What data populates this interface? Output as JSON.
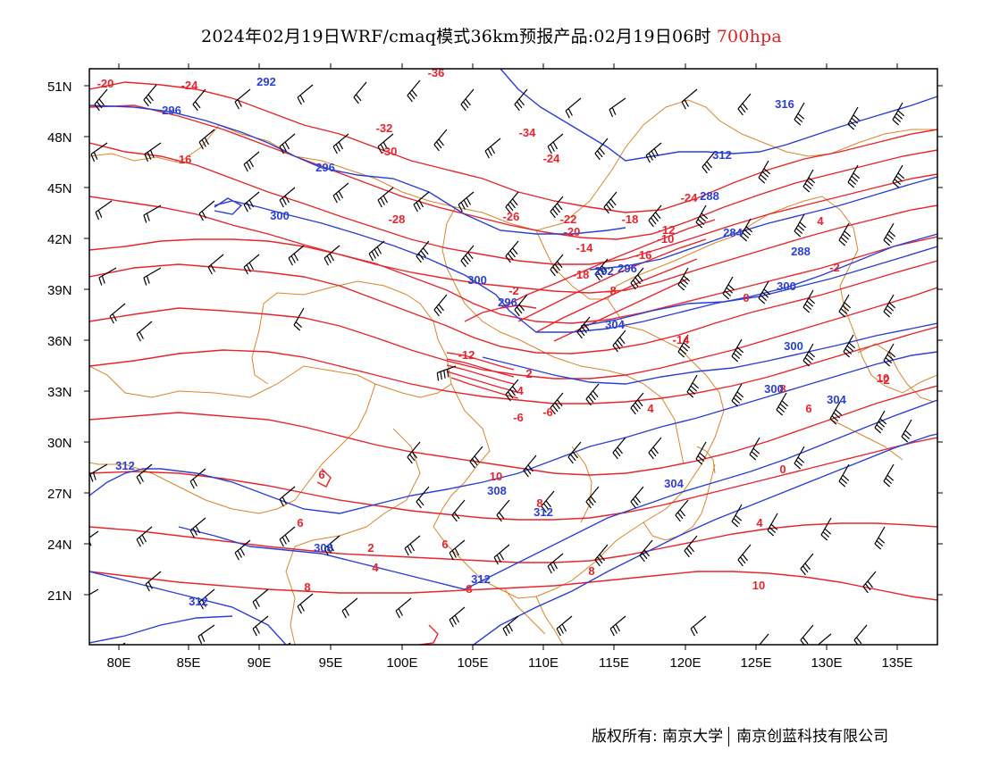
{
  "header": {
    "title": "2024年02月19日WRF/cmaq模式36km预报产品:02月19日06时",
    "level": "700hpa"
  },
  "axes": {
    "lat_labels": [
      "51N",
      "48N",
      "45N",
      "42N",
      "39N",
      "36N",
      "33N",
      "30N",
      "27N",
      "24N",
      "21N"
    ],
    "lon_labels": [
      "80E",
      "85E",
      "90E",
      "95E",
      "100E",
      "105E",
      "110E",
      "115E",
      "120E",
      "125E",
      "130E",
      "135E"
    ]
  },
  "contour_labels": {
    "temperature": [
      "-20",
      "-24",
      "-36",
      "-16",
      "-32",
      "-30",
      "-34",
      "-24",
      "-28",
      "-26",
      "-22",
      "-18",
      "-24",
      "-20",
      "-14",
      "-12",
      "-10",
      "-16",
      "-18",
      "-8",
      "-2",
      "0",
      "-2",
      "4",
      "-14",
      "-12",
      "-4",
      "2",
      "-6",
      "-6",
      "4",
      "6",
      "-2",
      "0",
      "4",
      "6",
      "10",
      "8",
      "6",
      "2",
      "4",
      "6",
      "8",
      "8",
      "8",
      "10",
      "8",
      "10"
    ],
    "geopotential": [
      "292",
      "296",
      "296",
      "300",
      "300",
      "296",
      "300",
      "304",
      "300",
      "300",
      "304",
      "308",
      "312",
      "304",
      "308",
      "312",
      "312",
      "312",
      "316",
      "312",
      "288",
      "284",
      "288",
      "292",
      "296"
    ]
  },
  "colors": {
    "temperature_contour": "#e8242c",
    "geopotential_contour": "#2a3fd6",
    "border": "#d9852a",
    "wind_barb": "#000000",
    "level_text": "#e02020"
  },
  "footer": {
    "copyright": "版权所有: 南京大学",
    "company": "南京创蓝科技有限公司"
  }
}
